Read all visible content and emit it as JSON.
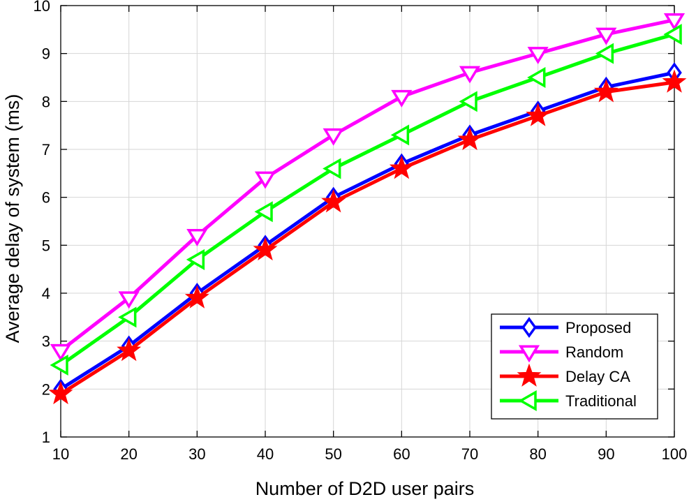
{
  "chart_data": {
    "type": "line",
    "title": "",
    "xlabel": "Number of D2D user pairs",
    "ylabel": "Average delay of system (ms)",
    "x": [
      10,
      20,
      30,
      40,
      50,
      60,
      70,
      80,
      90,
      100
    ],
    "xlim": [
      10,
      100
    ],
    "ylim": [
      1,
      10
    ],
    "xticks": [
      10,
      20,
      30,
      40,
      50,
      60,
      70,
      80,
      90,
      100
    ],
    "yticks": [
      1,
      2,
      3,
      4,
      5,
      6,
      7,
      8,
      9,
      10
    ],
    "grid": true,
    "legend_position": "bottom-right",
    "series": [
      {
        "name": "Proposed",
        "color": "#0000ff",
        "marker": "diamond",
        "values": [
          2.0,
          2.9,
          4.0,
          5.0,
          6.0,
          6.7,
          7.3,
          7.8,
          8.3,
          8.6
        ]
      },
      {
        "name": "Random",
        "color": "#ff00ff",
        "marker": "triangle-down",
        "values": [
          2.8,
          3.9,
          5.2,
          6.4,
          7.3,
          8.1,
          8.6,
          9.0,
          9.4,
          9.7
        ]
      },
      {
        "name": "Delay CA",
        "color": "#ff0000",
        "marker": "pentagram",
        "values": [
          1.9,
          2.8,
          3.9,
          4.9,
          5.9,
          6.6,
          7.2,
          7.7,
          8.2,
          8.4
        ]
      },
      {
        "name": "Traditional",
        "color": "#00ff00",
        "marker": "triangle-left",
        "values": [
          2.5,
          3.5,
          4.7,
          5.7,
          6.6,
          7.3,
          8.0,
          8.5,
          9.0,
          9.4
        ]
      }
    ]
  }
}
